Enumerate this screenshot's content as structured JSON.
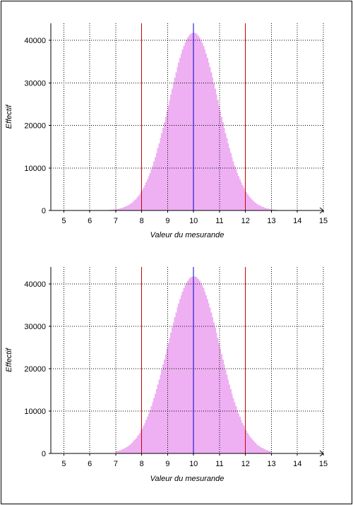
{
  "chart_data": [
    {
      "type": "bar",
      "xlabel": "Valeur du mesurande",
      "ylabel": "Effectif",
      "xlim": [
        4.5,
        15
      ],
      "ylim": [
        0,
        44000
      ],
      "xticks": [
        "5",
        "6",
        "7",
        "8",
        "9",
        "10",
        "11",
        "12",
        "13",
        "14",
        "15"
      ],
      "yticks": [
        "0",
        "10000",
        "20000",
        "30000",
        "40000"
      ],
      "grid": "dotted",
      "histogram": {
        "min": 6.7,
        "max": 13.3,
        "mean": 10.0,
        "sd": 0.95,
        "peak": 41800,
        "bin_width": 0.05,
        "color": "#eeb0f2"
      },
      "reference_lines": [
        {
          "x": 8,
          "color": "#cc0000"
        },
        {
          "x": 10,
          "color": "#0000cc"
        },
        {
          "x": 12,
          "color": "#cc0000"
        }
      ],
      "line_color": "#000000"
    },
    {
      "type": "bar",
      "xlabel": "Valeur du mesurande",
      "ylabel": "Effectif",
      "xlim": [
        4.5,
        15
      ],
      "ylim": [
        0,
        44000
      ],
      "xticks": [
        "5",
        "6",
        "7",
        "8",
        "9",
        "10",
        "11",
        "12",
        "13",
        "14",
        "15"
      ],
      "yticks": [
        "0",
        "10000",
        "20000",
        "30000",
        "40000"
      ],
      "grid": "dotted",
      "histogram": {
        "min": 7.0,
        "max": 13.0,
        "mean": 10.0,
        "sd": 1.0,
        "peak": 41800,
        "bin_width": 0.05,
        "color": "#eeb0f2"
      },
      "reference_lines": [
        {
          "x": 8,
          "color": "#cc0000"
        },
        {
          "x": 10,
          "color": "#0000cc"
        },
        {
          "x": 12,
          "color": "#cc0000"
        }
      ],
      "line_color": "#000000"
    }
  ]
}
